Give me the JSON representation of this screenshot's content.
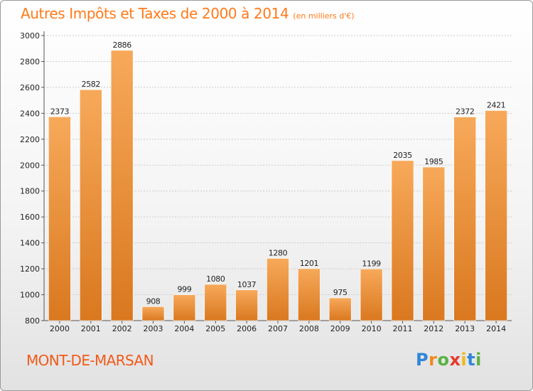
{
  "header": {
    "title": "Autres Impôts et Taxes de 2000 à 2014",
    "unit_note": "(en milliers d'€)"
  },
  "footer": {
    "town": "MONT-DE-MARSAN",
    "logo_letters": [
      {
        "char": "P",
        "color": "#2f86d8"
      },
      {
        "char": "r",
        "color": "#f0891e"
      },
      {
        "char": "o",
        "color": "#59b341"
      },
      {
        "char": "x",
        "color": "#e53a2b"
      },
      {
        "char": "i",
        "color": "#f0b81e"
      },
      {
        "char": "t",
        "color": "#2f86d8"
      },
      {
        "char": "i",
        "color": "#59b341"
      }
    ]
  },
  "colors": {
    "bar_top": "#f7a95a",
    "bar_bottom": "#d9781f",
    "title": "#ff7a1a",
    "town": "#f05a1a",
    "grid": "#cccccc"
  },
  "chart_data": {
    "type": "bar",
    "title": "Autres Impôts et Taxes de 2000 à 2014",
    "subtitle": "(en milliers d'€)",
    "xlabel": "",
    "ylabel": "",
    "categories": [
      "2000",
      "2001",
      "2002",
      "2003",
      "2004",
      "2005",
      "2006",
      "2007",
      "2008",
      "2009",
      "2010",
      "2011",
      "2012",
      "2013",
      "2014"
    ],
    "values": [
      2373,
      2582,
      2886,
      908,
      999,
      1080,
      1037,
      1280,
      1201,
      975,
      1199,
      2035,
      1985,
      2372,
      2421
    ],
    "ylim": [
      800,
      3000
    ],
    "yticks": [
      800,
      1000,
      1200,
      1400,
      1600,
      1800,
      2000,
      2200,
      2400,
      2600,
      2800,
      3000
    ],
    "grid": true,
    "data_labels": true,
    "legend": "none"
  }
}
